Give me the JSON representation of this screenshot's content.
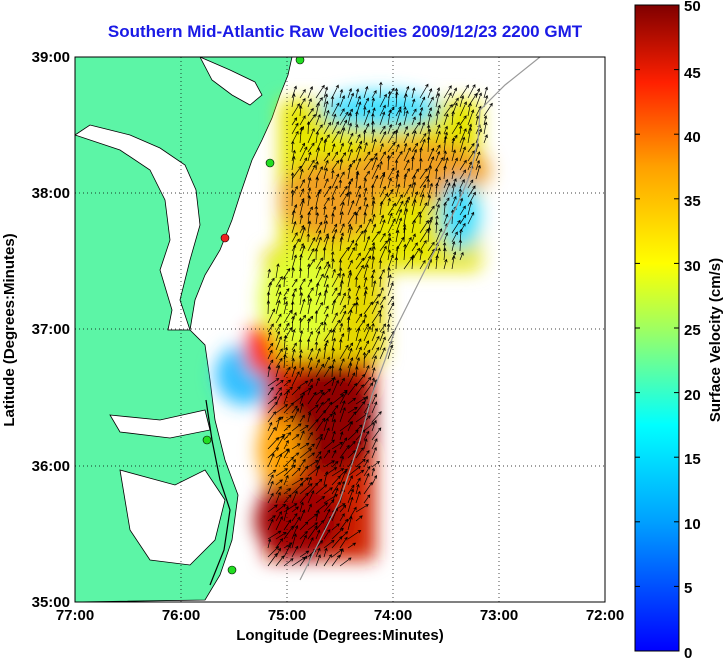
{
  "title": "Southern Mid-Atlantic Raw Velocities 2009/12/23 2200 GMT",
  "axes": {
    "xlabel": "Longitude (Degrees:Minutes)",
    "ylabel": "Latitude (Degrees:Minutes)",
    "x_ticks": [
      "77:00",
      "76:00",
      "75:00",
      "74:00",
      "73:00",
      "72:00"
    ],
    "y_ticks": [
      "39:00",
      "38:00",
      "37:00",
      "36:00",
      "35:00"
    ],
    "x_range_deg_west": [
      77,
      72
    ],
    "y_range_deg_north": [
      35,
      39
    ],
    "grid": "dotted"
  },
  "colorbar": {
    "label": "Surface Velocity (cm/s)",
    "ticks": [
      "50",
      "45",
      "40",
      "35",
      "30",
      "25",
      "20",
      "15",
      "10",
      "5",
      "0"
    ],
    "range_cm_s": [
      0,
      50
    ],
    "colormap": "jet"
  },
  "colors": {
    "land": "#5cf5a6",
    "title": "#1a1ae6",
    "coastline": "#000000",
    "bathymetry": "#9a9a9a",
    "site_green": "#22dd22",
    "site_red": "#ee2222"
  }
}
